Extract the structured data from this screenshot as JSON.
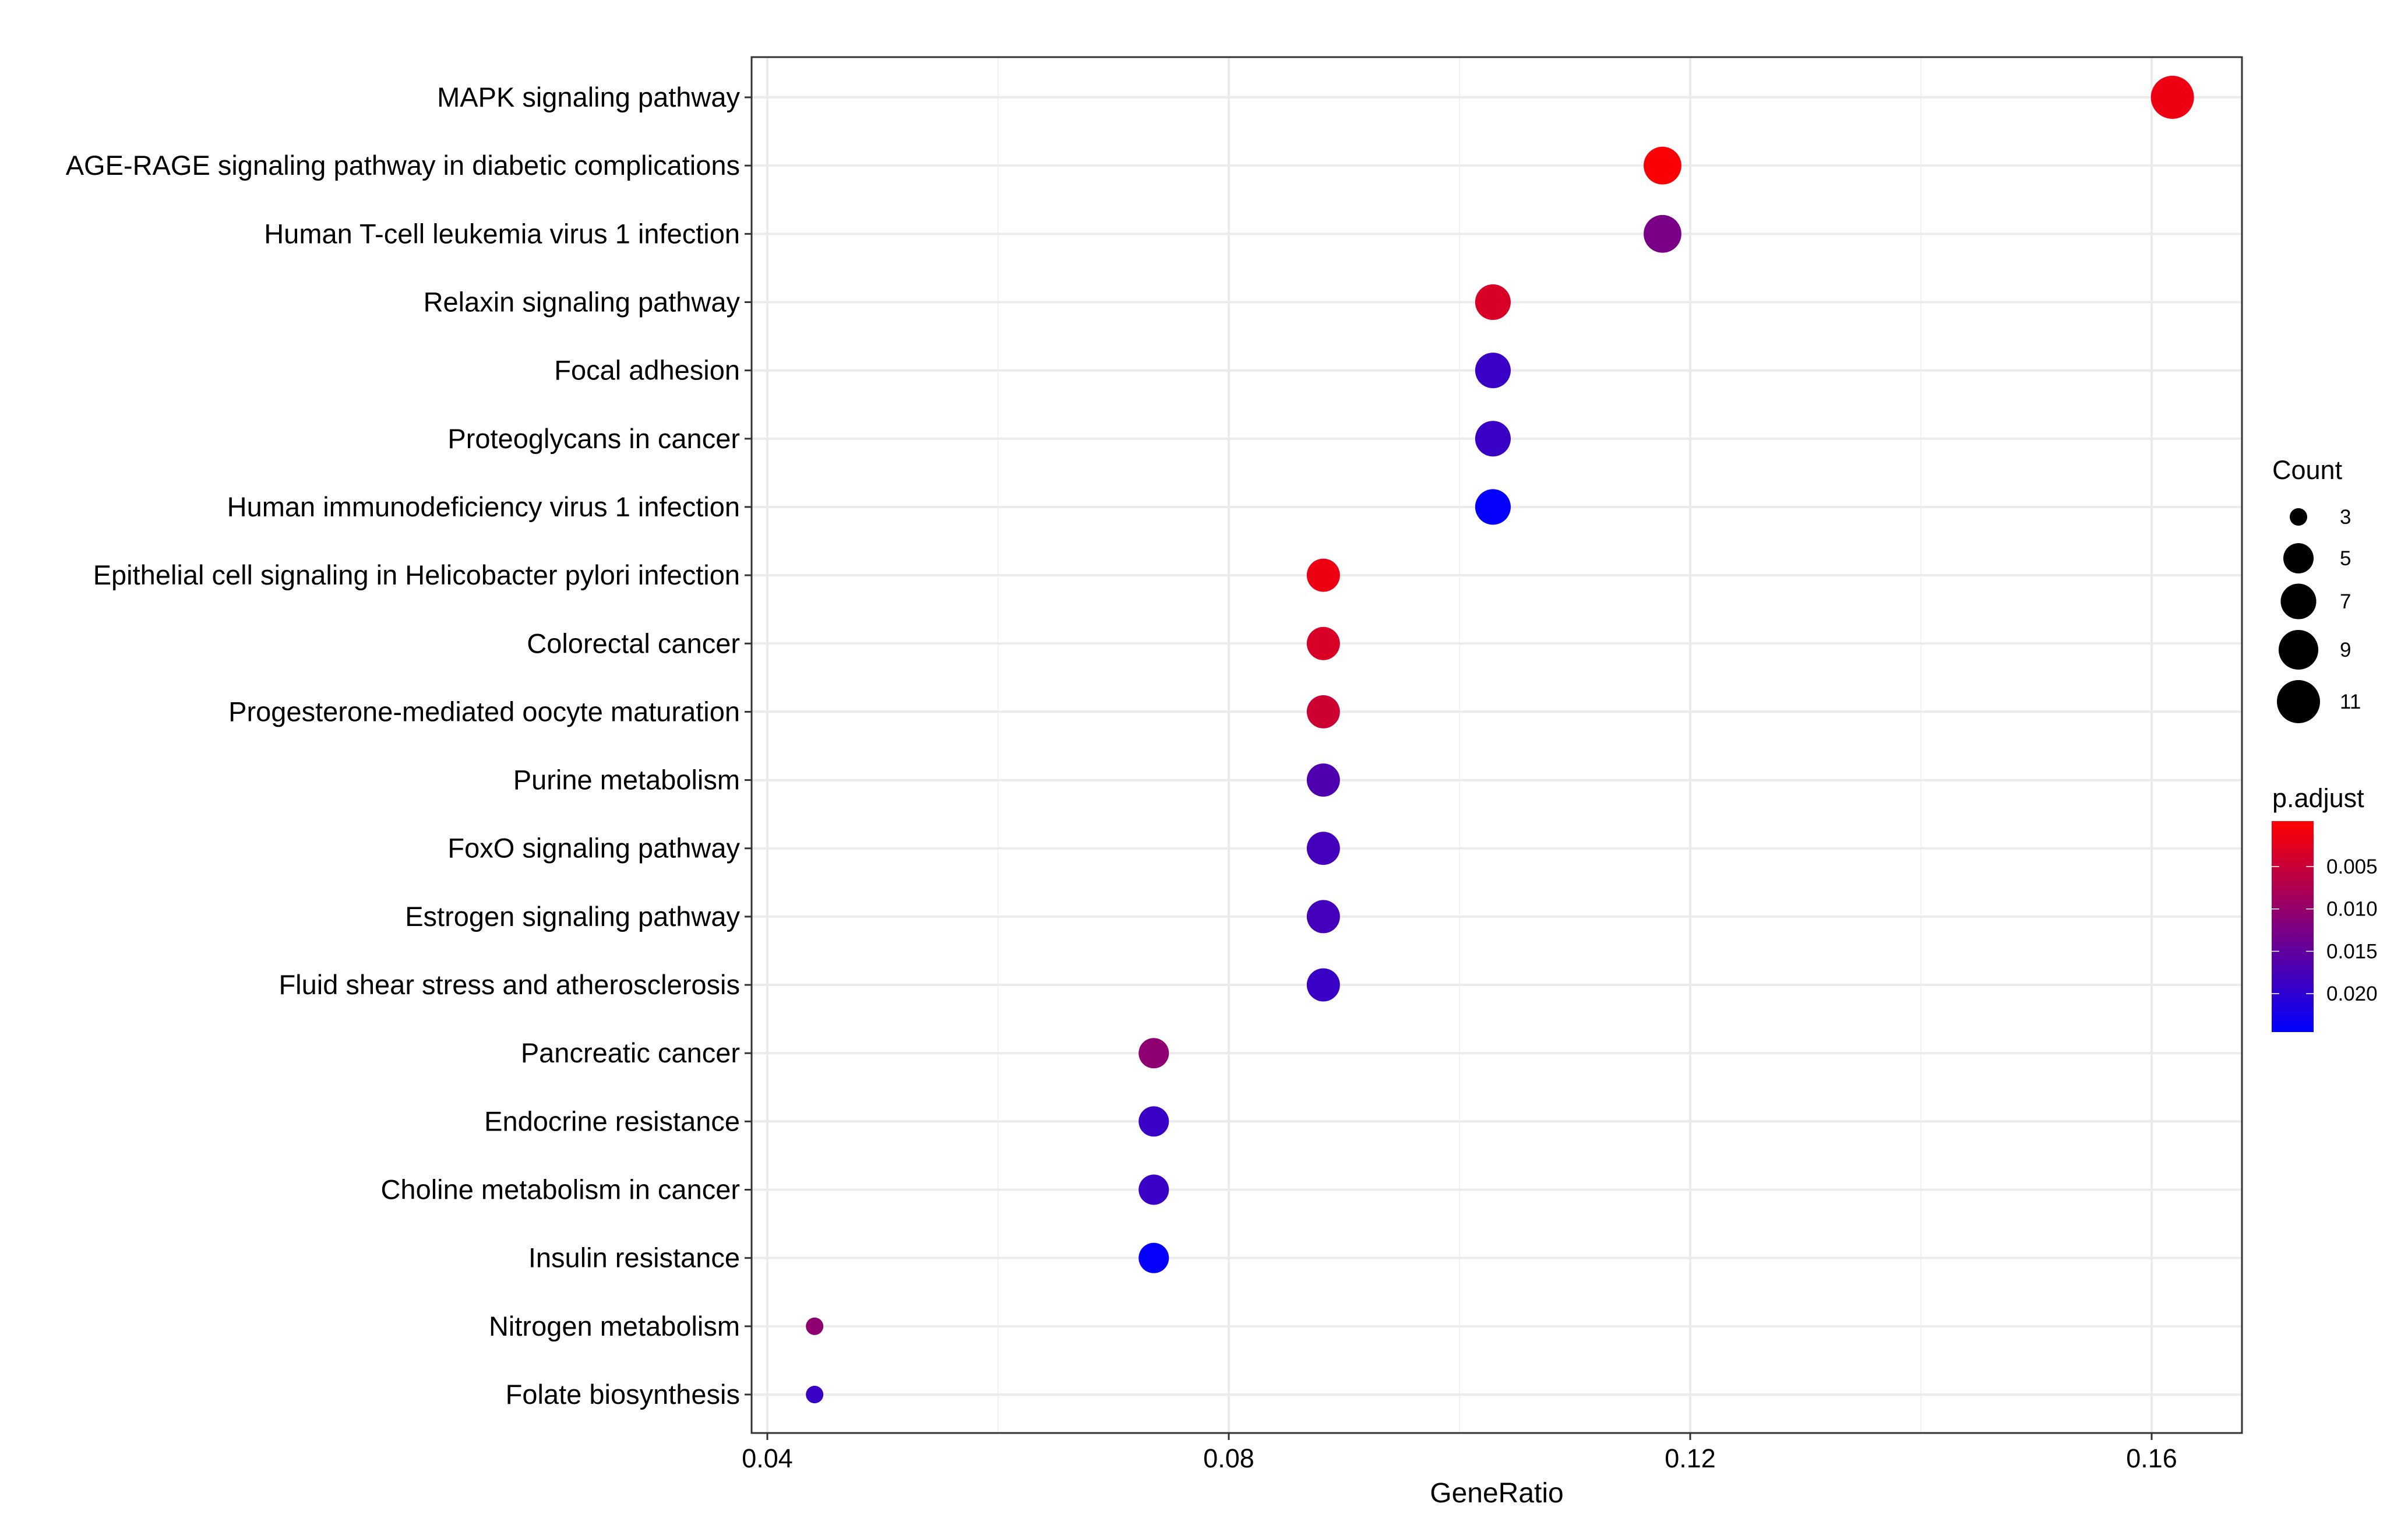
{
  "chart_data": {
    "type": "scatter",
    "title": "",
    "xlabel": "GeneRatio",
    "ylabel": "",
    "xlim": [
      0.0375,
      0.1645
    ],
    "xticks": [
      0.04,
      0.08,
      0.12,
      0.16
    ],
    "xtick_labels": [
      "0.04",
      "0.08",
      "0.12",
      "0.16"
    ],
    "grid": true,
    "categories": [
      "MAPK signaling pathway",
      "AGE-RAGE signaling pathway in diabetic complications",
      "Human T-cell leukemia virus 1 infection",
      "Relaxin signaling pathway",
      "Focal adhesion",
      "Proteoglycans in cancer",
      "Human immunodeficiency virus 1 infection",
      "Epithelial cell signaling in Helicobacter pylori infection",
      "Colorectal cancer",
      "Progesterone-mediated oocyte maturation",
      "Purine metabolism",
      "FoxO signaling pathway",
      "Estrogen signaling pathway",
      "Fluid shear stress and atherosclerosis",
      "Pancreatic cancer",
      "Endocrine resistance",
      "Choline metabolism in cancer",
      "Insulin resistance",
      "Nitrogen metabolism",
      "Folate biosynthesis"
    ],
    "gene_ratio": [
      0.1618,
      0.1176,
      0.1176,
      0.1029,
      0.1029,
      0.1029,
      0.1029,
      0.0882,
      0.0882,
      0.0882,
      0.0882,
      0.0882,
      0.0882,
      0.0882,
      0.0735,
      0.0735,
      0.0735,
      0.0735,
      0.0441,
      0.0441
    ],
    "count": [
      11,
      8,
      8,
      7,
      7,
      7,
      7,
      6,
      6,
      6,
      6,
      6,
      6,
      6,
      5,
      5,
      5,
      5,
      3,
      3
    ],
    "p_adjust": [
      0.002,
      0.0008,
      0.013,
      0.004,
      0.019,
      0.019,
      0.024,
      0.002,
      0.004,
      0.005,
      0.017,
      0.018,
      0.018,
      0.019,
      0.011,
      0.019,
      0.019,
      0.024,
      0.011,
      0.019
    ],
    "legend_size": {
      "title": "Count",
      "values": [
        3,
        5,
        7,
        9,
        11
      ],
      "labels": [
        "3",
        "5",
        "7",
        "9",
        "11"
      ]
    },
    "legend_color": {
      "title": "p.adjust",
      "range": [
        0.0003,
        0.0244
      ],
      "ticks": [
        0.005,
        0.01,
        0.015,
        0.02
      ],
      "labels": [
        "0.005",
        "0.010",
        "0.015",
        "0.020"
      ],
      "low_color": "#FF0000",
      "high_color": "#0000FF"
    },
    "legend_position": "right"
  }
}
